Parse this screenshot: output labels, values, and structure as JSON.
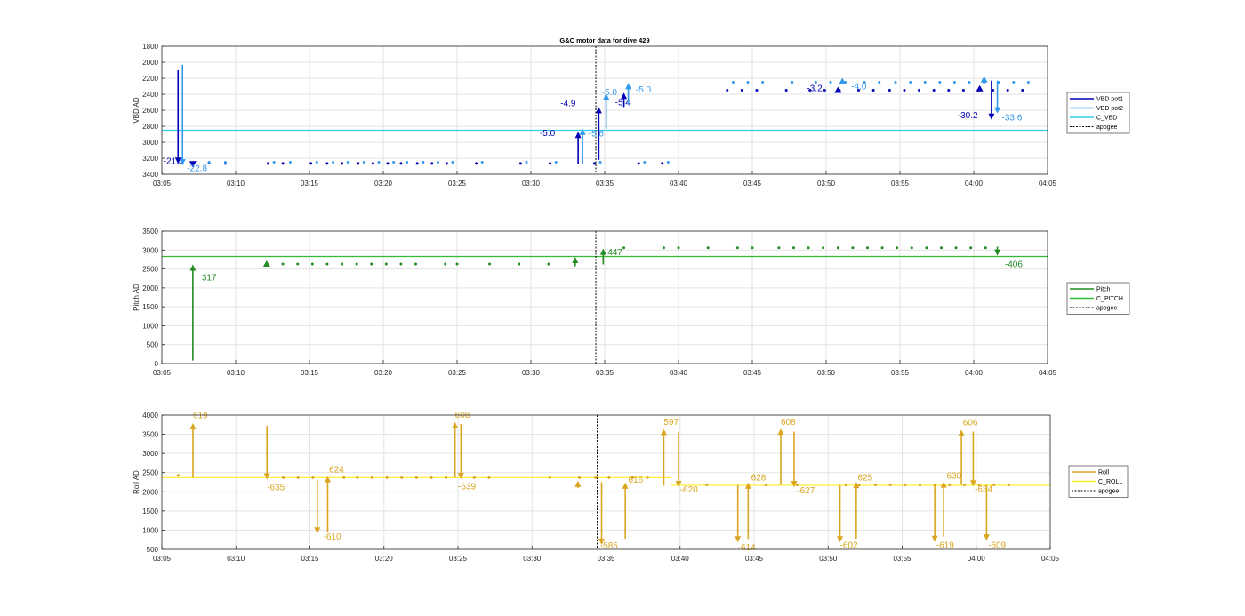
{
  "title": "G&C motor data for dive 429",
  "colors": {
    "vbd1": "#0000b4",
    "vbd2": "#3399ee",
    "cvbd": "#33ccee",
    "pitch": "#228b22",
    "cpitch": "#33bb33",
    "roll": "#daa520",
    "croll": "#ffee22",
    "apogee": "#000000"
  },
  "chart_data": [
    {
      "type": "line",
      "ylabel": "VBD AD",
      "xlim": [
        "03:05",
        "04:05"
      ],
      "ylim": [
        1800,
        3400
      ],
      "ydir": "reverse",
      "grid": true,
      "legend_position": "right",
      "xticks": [
        "03:05",
        "03:10",
        "03:15",
        "03:20",
        "03:25",
        "03:30",
        "03:35",
        "03:40",
        "03:45",
        "03:50",
        "03:55",
        "04:00",
        "04:05"
      ],
      "yticks": [
        1800,
        2000,
        2200,
        2400,
        2600,
        2800,
        3000,
        3200,
        3400
      ],
      "legend": [
        "VBD pot1",
        "VBD pot2",
        "C_VBD",
        "apogee"
      ],
      "apogee_time": "03:34.4",
      "reference_lines": [
        {
          "name": "C_VBD",
          "y": 2850
        }
      ],
      "series": [
        {
          "name": "VBD pot1",
          "x": [
            3.2,
            4.3,
            7.2,
            8.2,
            10.1,
            11.2,
            12.2,
            13.3,
            14.3,
            15.3,
            16.2,
            17.3,
            18.3,
            19.3,
            21.3,
            24.3,
            26.3,
            29.3,
            32.3,
            33.9,
            38.3,
            39.3,
            40.3,
            42.3,
            43.9,
            44.9,
            45.9,
            47.2,
            48.2,
            49.3,
            50.3,
            51.3,
            52.3,
            53.3,
            54.3,
            55.3,
            56.3,
            57.3,
            58.3
          ],
          "y": [
            3260,
            3265,
            3265,
            3265,
            3265,
            3265,
            3265,
            3265,
            3265,
            3265,
            3265,
            3265,
            3265,
            3265,
            3265,
            3265,
            3265,
            3265,
            3265,
            3265,
            2350,
            2350,
            2350,
            2350,
            2350,
            2350,
            2350,
            2350,
            2350,
            2350,
            2350,
            2350,
            2350,
            2350,
            2350,
            2350,
            2350,
            2350,
            2350
          ]
        },
        {
          "name": "VBD pot2",
          "x": [
            3.2,
            4.3,
            7.6,
            8.7,
            10.5,
            11.6,
            12.6,
            13.7,
            14.7,
            15.7,
            16.6,
            17.7,
            18.7,
            19.7,
            21.7,
            24.7,
            26.7,
            29.7,
            32.7,
            34.3,
            38.7,
            39.7,
            40.7,
            42.7,
            44.3,
            45.3,
            46.3,
            47.6,
            48.6,
            49.7,
            50.7,
            51.7,
            52.7,
            53.7,
            54.7,
            55.7,
            56.7,
            57.7,
            58.7
          ],
          "y": [
            3250,
            3250,
            3250,
            3250,
            3250,
            3250,
            3250,
            3250,
            3250,
            3250,
            3250,
            3250,
            3250,
            3250,
            3250,
            3250,
            3250,
            3250,
            3250,
            3250,
            2250,
            2250,
            2250,
            2250,
            2250,
            2250,
            2250,
            2250,
            2250,
            2250,
            2250,
            2250,
            2250,
            2250,
            2250,
            2250,
            2250,
            2250,
            2250
          ]
        }
      ],
      "moves": [
        {
          "name": "VBD pot1",
          "x": 1.1,
          "y_from": 2100,
          "y_to": 3270,
          "label": "-21.3",
          "label_x": 0.1,
          "label_y": 3270
        },
        {
          "name": "VBD pot2",
          "x": 1.4,
          "y_from": 2030,
          "y_to": 3290,
          "label": "-22.8",
          "label_x": 1.7,
          "label_y": 3360
        },
        {
          "name": "VBD pot1",
          "x": 28.2,
          "y_from": 3270,
          "y_to": 2870,
          "label": "-5.0",
          "label_x": 25.6,
          "label_y": 2920
        },
        {
          "name": "VBD pot2",
          "x": 28.5,
          "y_from": 3270,
          "y_to": 2830,
          "label": "-5.6",
          "label_x": 28.9,
          "label_y": 2930
        },
        {
          "name": "VBD pot1",
          "x": 29.6,
          "y_from": 3220,
          "y_to": 2560,
          "label": "-4.9",
          "label_x": 27.0,
          "label_y": 2550
        },
        {
          "name": "VBD pot2",
          "x": 30.1,
          "y_from": 2830,
          "y_to": 2390,
          "label": "-5.0",
          "label_x": 29.8,
          "label_y": 2410
        },
        {
          "name": "VBD pot1",
          "x": 31.3,
          "y_from": 2560,
          "y_to": 2380,
          "label": "-5.4",
          "label_x": 30.7,
          "label_y": 2540
        },
        {
          "name": "VBD pot2",
          "x": 31.6,
          "y_from": 2530,
          "y_to": 2260,
          "label": "-5.0",
          "label_x": 32.1,
          "label_y": 2380
        },
        {
          "name": "VBD pot1",
          "x": 56.2,
          "y_from": 2230,
          "y_to": 2720,
          "label": "-30.2",
          "label_x": 53.9,
          "label_y": 2700
        },
        {
          "name": "VBD pot2",
          "x": 56.6,
          "y_from": 2230,
          "y_to": 2640,
          "label": "-33.6",
          "label_x": 56.9,
          "label_y": 2730
        }
      ],
      "extra_labels": [
        {
          "text": "-3.2",
          "x": 43.7,
          "y": 2360,
          "series": "VBD pot1"
        },
        {
          "text": "-4.0",
          "x": 46.7,
          "y": 2340,
          "series": "VBD pot2"
        }
      ],
      "markers": [
        {
          "series": "VBD pot1",
          "x": 2.1,
          "y": 3270,
          "shape": "down"
        },
        {
          "series": "VBD pot1",
          "x": 45.8,
          "y": 2350,
          "shape": "up"
        },
        {
          "series": "VBD pot2",
          "x": 46.1,
          "y": 2240,
          "shape": "up"
        },
        {
          "series": "VBD pot1",
          "x": 55.4,
          "y": 2330,
          "shape": "up"
        },
        {
          "series": "VBD pot2",
          "x": 55.7,
          "y": 2220,
          "shape": "up"
        }
      ]
    },
    {
      "type": "line",
      "ylabel": "Pitch AD",
      "xlim": [
        "03:05",
        "04:05"
      ],
      "ylim": [
        0,
        3500
      ],
      "grid": true,
      "legend_position": "right",
      "xticks": [
        "03:05",
        "03:10",
        "03:15",
        "03:20",
        "03:25",
        "03:30",
        "03:35",
        "03:40",
        "03:45",
        "03:50",
        "03:55",
        "04:00",
        "04:05"
      ],
      "yticks": [
        0,
        500,
        1000,
        1500,
        2000,
        2500,
        3000,
        3500
      ],
      "legend": [
        "Pitch",
        "C_PITCH",
        "apogee"
      ],
      "apogee_time": "03:34.4",
      "reference_lines": [
        {
          "name": "C_PITCH",
          "y": 2830
        }
      ],
      "series": [
        {
          "name": "Pitch",
          "x": [
            8.2,
            9.2,
            10.2,
            11.2,
            12.2,
            13.2,
            14.2,
            15.2,
            16.2,
            17.2,
            19.2,
            20.0,
            22.2,
            24.2,
            26.2,
            31.3,
            34.0,
            35.0,
            37.0,
            39.0,
            40.0,
            41.8,
            42.8,
            43.8,
            44.8,
            45.8,
            46.8,
            47.8,
            48.8,
            49.8,
            50.8,
            51.8,
            52.8,
            53.8,
            54.8,
            55.8
          ],
          "y": [
            2630,
            2630,
            2630,
            2630,
            2630,
            2630,
            2630,
            2630,
            2630,
            2630,
            2630,
            2630,
            2630,
            2630,
            2630,
            3060,
            3060,
            3060,
            3060,
            3060,
            3060,
            3060,
            3060,
            3060,
            3060,
            3060,
            3060,
            3060,
            3060,
            3060,
            3060,
            3060,
            3060,
            3060,
            3060,
            3060
          ]
        }
      ],
      "moves": [
        {
          "name": "Pitch",
          "x": 2.1,
          "y_from": 80,
          "y_to": 2620,
          "label": "317",
          "label_x": 2.7,
          "label_y": 2200
        },
        {
          "name": "Pitch",
          "x": 28.0,
          "y_from": 2570,
          "y_to": 2820,
          "label": "",
          "label_x": 0,
          "label_y": 0
        },
        {
          "name": "Pitch",
          "x": 29.9,
          "y_from": 2620,
          "y_to": 3040,
          "label": "447",
          "label_x": 30.2,
          "label_y": 2870
        },
        {
          "name": "Pitch",
          "x": 56.6,
          "y_from": 3090,
          "y_to": 2850,
          "label": "-406",
          "label_x": 57.1,
          "label_y": 2550
        }
      ],
      "extra_labels": [],
      "markers": [
        {
          "series": "Pitch",
          "x": 7.1,
          "y": 2630,
          "shape": "up"
        }
      ]
    },
    {
      "type": "line",
      "ylabel": "Roll AD",
      "xlim": [
        "03:05",
        "04:05"
      ],
      "ylim": [
        500,
        4000
      ],
      "grid": true,
      "legend_position": "right",
      "xticks": [
        "03:05",
        "03:10",
        "03:15",
        "03:20",
        "03:25",
        "03:30",
        "03:35",
        "03:40",
        "03:45",
        "03:50",
        "03:55",
        "04:00",
        "04:05"
      ],
      "yticks": [
        500,
        1000,
        1500,
        2000,
        2500,
        3000,
        3500,
        4000
      ],
      "legend": [
        "Roll",
        "C_ROLL",
        "apogee"
      ],
      "apogee_time": "03:34.4",
      "reference_lines": [
        {
          "name": "C_ROLL",
          "y": 2370,
          "x_to": 34.4
        },
        {
          "name": "C_ROLL",
          "y": 2170,
          "x_from": 34.4
        }
      ],
      "series": [
        {
          "name": "Roll",
          "x": [
            1.1,
            8.2,
            9.2,
            10.2,
            12.3,
            13.2,
            14.2,
            15.2,
            16.2,
            17.2,
            18.2,
            19.2,
            21.1,
            22.1,
            26.2,
            28.2,
            29.3,
            30.2,
            31.8,
            32.8,
            36.8,
            40.8,
            42.9,
            46.2,
            47.1,
            48.2,
            49.2,
            50.2,
            51.2,
            52.2,
            53.2,
            54.2,
            55.2,
            56.2,
            57.2
          ],
          "y": [
            2430,
            2370,
            2370,
            2370,
            2370,
            2370,
            2370,
            2370,
            2370,
            2370,
            2370,
            2370,
            2370,
            2370,
            2370,
            2370,
            2370,
            2370,
            2370,
            2370,
            2180,
            2180,
            2180,
            2180,
            2180,
            2180,
            2180,
            2180,
            2180,
            2180,
            2180,
            2180,
            2180,
            2180,
            2180
          ]
        }
      ],
      "moves": [
        {
          "name": "Roll",
          "x": 2.1,
          "y_from": 2370,
          "y_to": 3790,
          "label": "619",
          "label_x": 2.1,
          "label_y": 3920
        },
        {
          "name": "Roll",
          "x": 7.1,
          "y_from": 3720,
          "y_to": 2320,
          "label": "-635",
          "label_x": 7.1,
          "label_y": 2040
        },
        {
          "name": "Roll",
          "x": 10.5,
          "y_from": 2320,
          "y_to": 910,
          "label": "-610",
          "label_x": 10.9,
          "label_y": 750
        },
        {
          "name": "Roll",
          "x": 11.2,
          "y_from": 960,
          "y_to": 2410,
          "label": "624",
          "label_x": 11.3,
          "label_y": 2500
        },
        {
          "name": "Roll",
          "x": 19.8,
          "y_from": 2370,
          "y_to": 3820,
          "label": "608",
          "label_x": 19.8,
          "label_y": 3930
        },
        {
          "name": "Roll",
          "x": 20.2,
          "y_from": 3770,
          "y_to": 2330,
          "label": "-639",
          "label_x": 20.0,
          "label_y": 2070
        },
        {
          "name": "Roll",
          "x": 28.1,
          "y_from": 2100,
          "y_to": 2290,
          "label": "",
          "label_x": 0,
          "label_y": 0
        },
        {
          "name": "Roll",
          "x": 29.7,
          "y_from": 2250,
          "y_to": 620,
          "label": "-585",
          "label_x": 29.6,
          "label_y": 520
        },
        {
          "name": "Roll",
          "x": 31.3,
          "y_from": 780,
          "y_to": 2240,
          "label": "616",
          "label_x": 31.5,
          "label_y": 2240
        },
        {
          "name": "Roll",
          "x": 33.9,
          "y_from": 2160,
          "y_to": 3640,
          "label": "597",
          "label_x": 33.9,
          "label_y": 3750
        },
        {
          "name": "Roll",
          "x": 34.9,
          "y_from": 3560,
          "y_to": 2120,
          "label": "-620",
          "label_x": 35.0,
          "label_y": 1980
        },
        {
          "name": "Roll",
          "x": 38.9,
          "y_from": 2180,
          "y_to": 680,
          "label": "-614",
          "label_x": 38.9,
          "label_y": 480
        },
        {
          "name": "Roll",
          "x": 39.6,
          "y_from": 770,
          "y_to": 2240,
          "label": "628",
          "label_x": 39.8,
          "label_y": 2300
        },
        {
          "name": "Roll",
          "x": 41.8,
          "y_from": 2180,
          "y_to": 3650,
          "label": "608",
          "label_x": 41.8,
          "label_y": 3740
        },
        {
          "name": "Roll",
          "x": 42.7,
          "y_from": 3570,
          "y_to": 2120,
          "label": "-627",
          "label_x": 42.9,
          "label_y": 1960
        },
        {
          "name": "Roll",
          "x": 45.8,
          "y_from": 2180,
          "y_to": 680,
          "label": "-602",
          "label_x": 45.8,
          "label_y": 530
        },
        {
          "name": "Roll",
          "x": 46.9,
          "y_from": 780,
          "y_to": 2260,
          "label": "625",
          "label_x": 47.0,
          "label_y": 2300
        },
        {
          "name": "Roll",
          "x": 52.2,
          "y_from": 2180,
          "y_to": 690,
          "label": "-619",
          "label_x": 52.3,
          "label_y": 530
        },
        {
          "name": "Roll",
          "x": 52.8,
          "y_from": 830,
          "y_to": 2270,
          "label": "630",
          "label_x": 53.0,
          "label_y": 2340
        },
        {
          "name": "Roll",
          "x": 54.0,
          "y_from": 2180,
          "y_to": 3620,
          "label": "606",
          "label_x": 54.1,
          "label_y": 3730
        },
        {
          "name": "Roll",
          "x": 54.8,
          "y_from": 3570,
          "y_to": 2140,
          "label": "-634",
          "label_x": 54.9,
          "label_y": 1990
        },
        {
          "name": "Roll",
          "x": 55.7,
          "y_from": 2180,
          "y_to": 730,
          "label": "-609",
          "label_x": 55.8,
          "label_y": 530
        }
      ],
      "extra_labels": [],
      "markers": []
    }
  ]
}
